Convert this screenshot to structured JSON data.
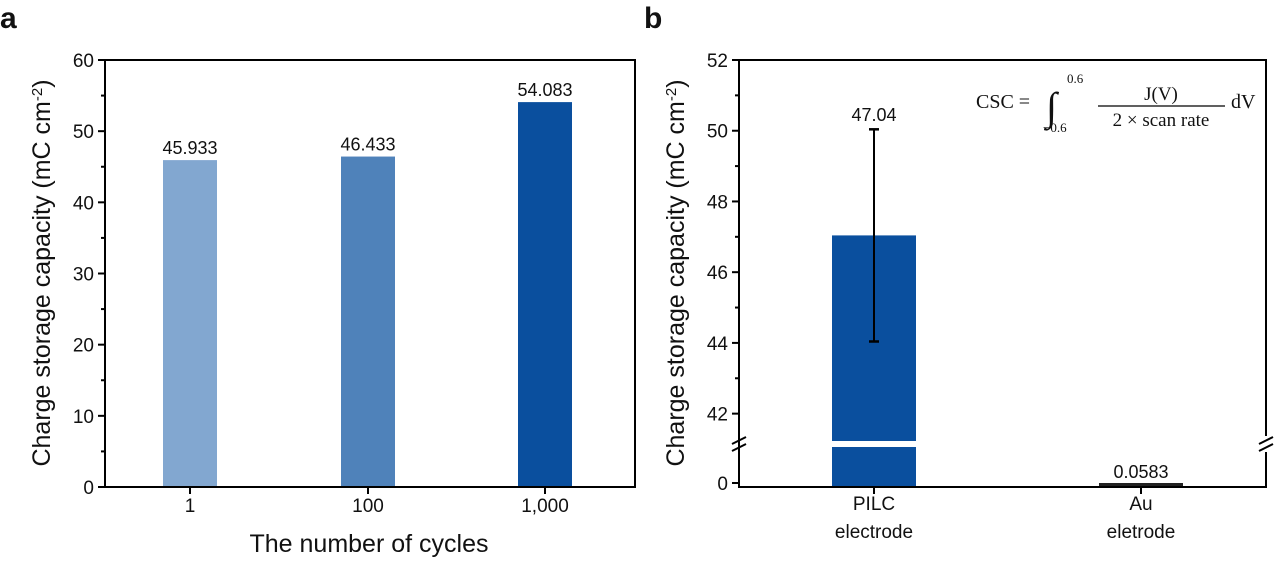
{
  "panel_labels": {
    "a": "a",
    "b": "b"
  },
  "colors": {
    "bar_1": "#82a7d0",
    "bar_100": "#4f82ba",
    "bar_1000": "#0a4f9e",
    "bar_pilc": "#0a4f9e",
    "axis": "#000000"
  },
  "formula": {
    "lhs": "CSC =",
    "upper": "0.6",
    "lower": "−0.6",
    "numerator": "J(V)",
    "denominator": "2 × scan rate",
    "dv": "dV"
  },
  "chart_data": [
    {
      "panel": "a",
      "type": "bar",
      "categories": [
        "1",
        "100",
        "1,000"
      ],
      "values": [
        45.933,
        46.433,
        54.083
      ],
      "data_labels": [
        "45.933",
        "46.433",
        "54.083"
      ],
      "xlabel": "The number of cycles",
      "ylabel_main": "Charge storage capacity (mC cm",
      "ylabel_sup": "-2",
      "ylabel_end": ")",
      "ylim": [
        0,
        60
      ],
      "yticks": [
        "0",
        "10",
        "20",
        "30",
        "40",
        "50",
        "60"
      ],
      "grid": false
    },
    {
      "panel": "b",
      "type": "bar",
      "categories": [
        "PILC electrode",
        "Au eletrode"
      ],
      "category_lines": [
        [
          "PILC",
          "electrode"
        ],
        [
          "Au",
          "eletrode"
        ]
      ],
      "values": [
        47.04,
        0.0583
      ],
      "error": [
        3.0,
        0
      ],
      "data_labels": [
        "47.04",
        "0.0583"
      ],
      "ylabel_main": "Charge storage capacity (mC cm",
      "ylabel_sup": "-2",
      "ylabel_end": ")",
      "axis_break": true,
      "ylim_upper": [
        41,
        52
      ],
      "ylim_lower": [
        0,
        0
      ],
      "yticks": [
        "0",
        "42",
        "44",
        "46",
        "48",
        "50",
        "52"
      ],
      "grid": false
    }
  ]
}
